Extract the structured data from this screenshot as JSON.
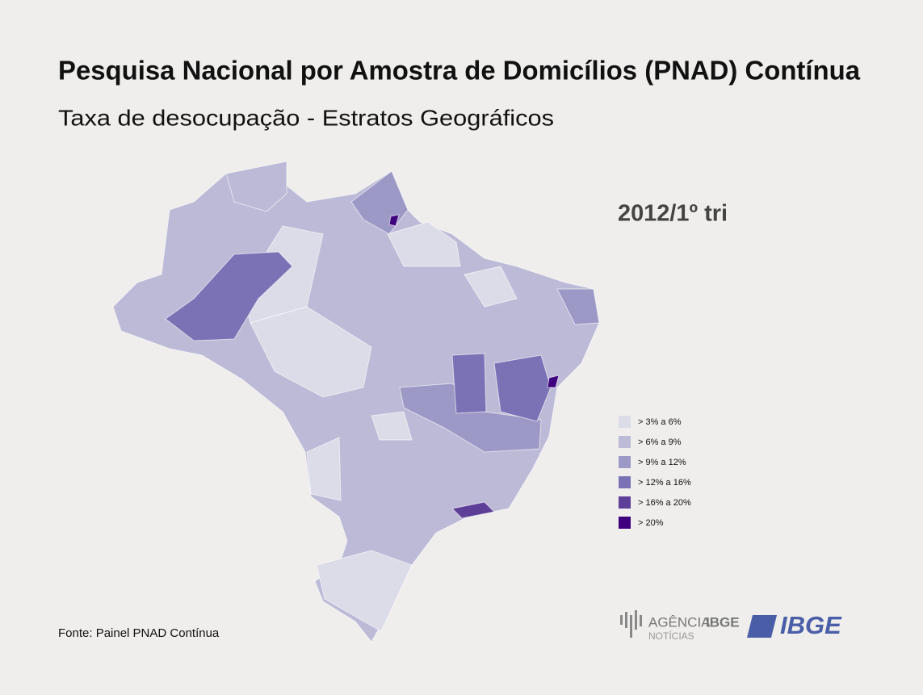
{
  "header": {
    "title": "Pesquisa Nacional por Amostra de Domicílios (PNAD) Contínua",
    "subtitle": "Taxa de desocupação - Estratos Geográficos"
  },
  "period": "2012/1º tri",
  "legend": {
    "items": [
      {
        "label": "> 3% a 6%",
        "color": "#dcdbe8"
      },
      {
        "label": "> 6% a 9%",
        "color": "#bcbad6"
      },
      {
        "label": "> 9% a 12%",
        "color": "#9d99c6"
      },
      {
        "label": "> 12% a 16%",
        "color": "#7b72b5"
      },
      {
        "label": "> 16% a 20%",
        "color": "#5e3f98"
      },
      {
        "label": "> 20%",
        "color": "#3f007d"
      }
    ]
  },
  "source": "Fonte: Painel PNAD Contínua",
  "logos": {
    "agency_main": "AGÊNCIA",
    "agency_bold": "IBGE",
    "agency_sub": "NOTÍCIAS",
    "ibge": "IBGE"
  }
}
